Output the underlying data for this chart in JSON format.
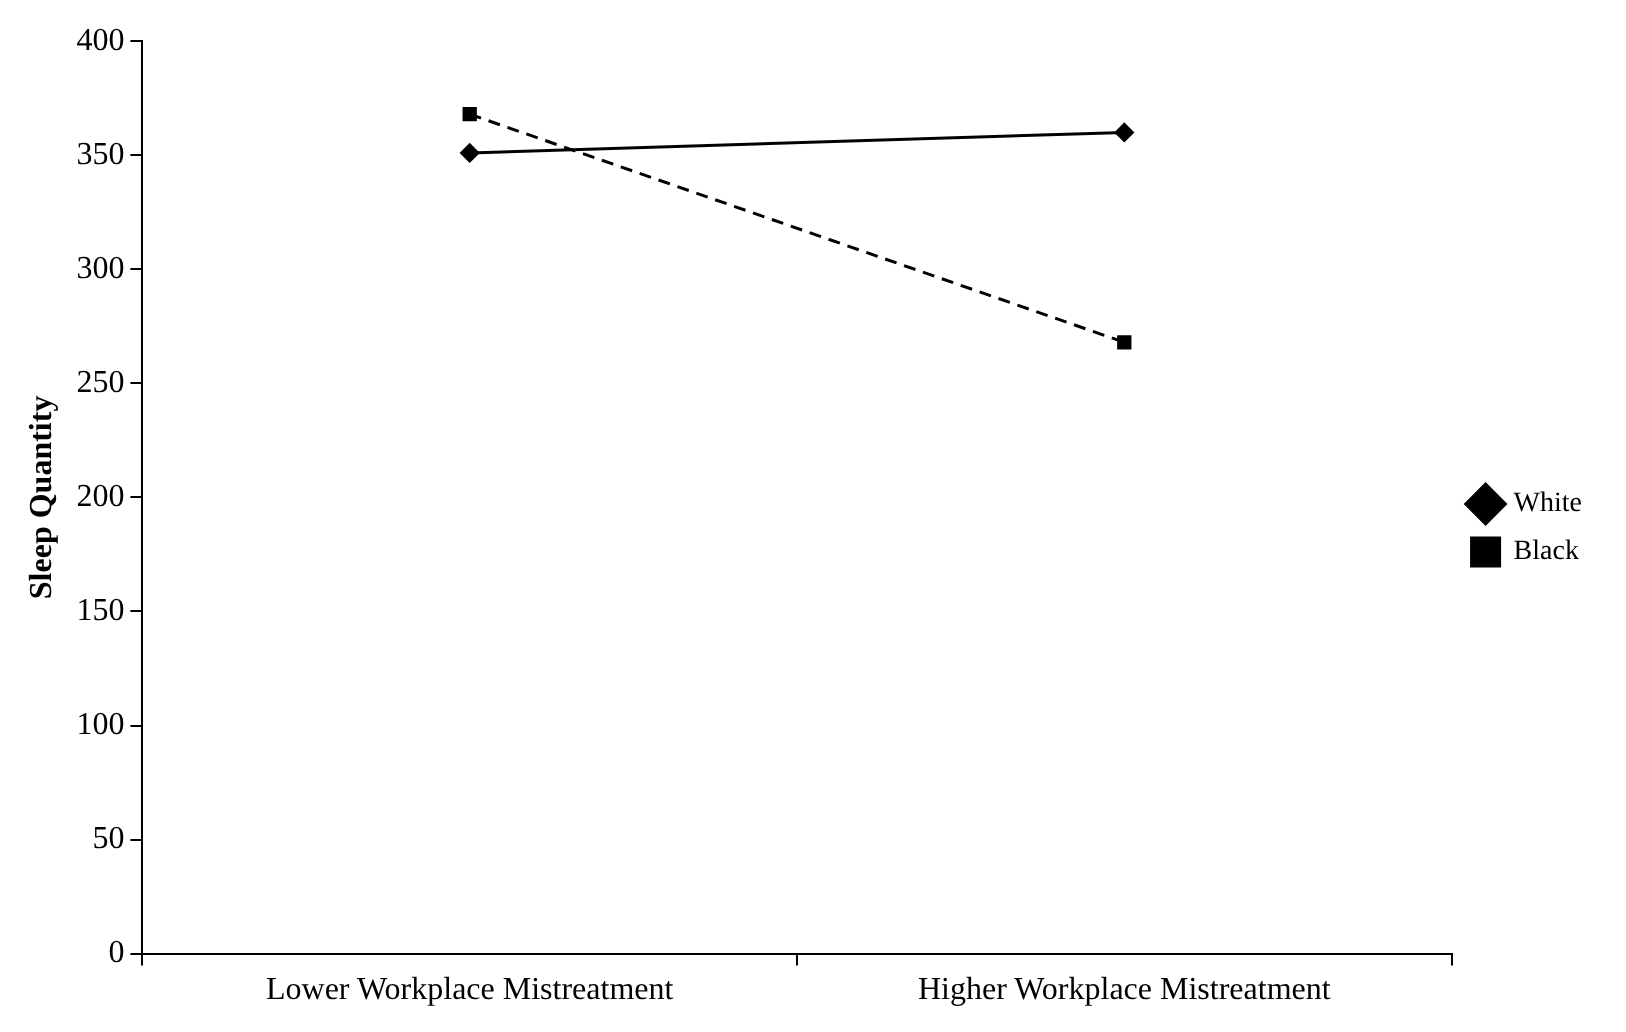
{
  "chart_data": {
    "type": "line",
    "ylabel": "Sleep Quantity",
    "categories": [
      "Lower Workplace Mistreatment",
      "Higher Workplace Mistreatment"
    ],
    "series": [
      {
        "name": "White",
        "color": "#000000",
        "values": [
          351,
          360
        ],
        "marker": "diamond",
        "line_style": "solid"
      },
      {
        "name": "Black",
        "color": "#000000",
        "values": [
          368,
          268
        ],
        "marker": "square",
        "line_style": "dashed"
      }
    ],
    "ylim": [
      0,
      400
    ],
    "yticks": [
      0,
      50,
      100,
      150,
      200,
      250,
      300,
      350,
      400
    ],
    "grid": false,
    "legend": "right"
  }
}
